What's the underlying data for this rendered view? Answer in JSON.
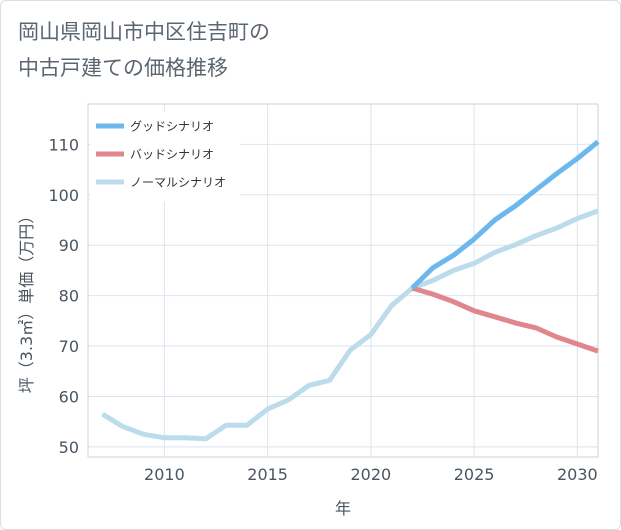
{
  "title_line1": "岡山県岡山市中区住吉町の",
  "title_line2": "中古戸建ての価格推移",
  "chart_data": {
    "type": "line",
    "xlabel": "年",
    "ylabel": "坪（3.3㎡）単価（万円）",
    "xlim": [
      2006.3,
      2031
    ],
    "ylim": [
      48,
      118
    ],
    "xticks": [
      2010,
      2015,
      2020,
      2025,
      2030
    ],
    "yticks": [
      50,
      60,
      70,
      80,
      90,
      100,
      110
    ],
    "legend_position": "top-left",
    "grid": true,
    "series": [
      {
        "name": "グッドシナリオ",
        "color": "#6cb8ec",
        "x": [
          2022,
          2023,
          2024,
          2025,
          2026,
          2027,
          2028,
          2029,
          2030,
          2031
        ],
        "y": [
          81.5,
          85.5,
          88.0,
          91.2,
          95.0,
          97.8,
          101.0,
          104.2,
          107.2,
          110.5
        ]
      },
      {
        "name": "バッドシナリオ",
        "color": "#e0868d",
        "x": [
          2022,
          2023,
          2024,
          2025,
          2026,
          2027,
          2028,
          2029,
          2030,
          2031
        ],
        "y": [
          81.5,
          80.3,
          78.8,
          77.0,
          75.8,
          74.6,
          73.6,
          71.8,
          70.4,
          69.0
        ]
      },
      {
        "name": "ノーマルシナリオ",
        "color": "#bcdcec",
        "x": [
          2007,
          2008,
          2009,
          2010,
          2011,
          2012,
          2013,
          2014,
          2015,
          2016,
          2017,
          2018,
          2019,
          2020,
          2021,
          2022,
          2023,
          2024,
          2025,
          2026,
          2027,
          2028,
          2029,
          2030,
          2031
        ],
        "y": [
          56.5,
          54.0,
          52.5,
          51.8,
          51.8,
          51.6,
          54.3,
          54.3,
          57.5,
          59.3,
          62.2,
          63.2,
          69.2,
          72.3,
          78.0,
          81.5,
          83.0,
          85.0,
          86.4,
          88.6,
          90.1,
          91.9,
          93.4,
          95.3,
          96.8
        ]
      }
    ]
  }
}
